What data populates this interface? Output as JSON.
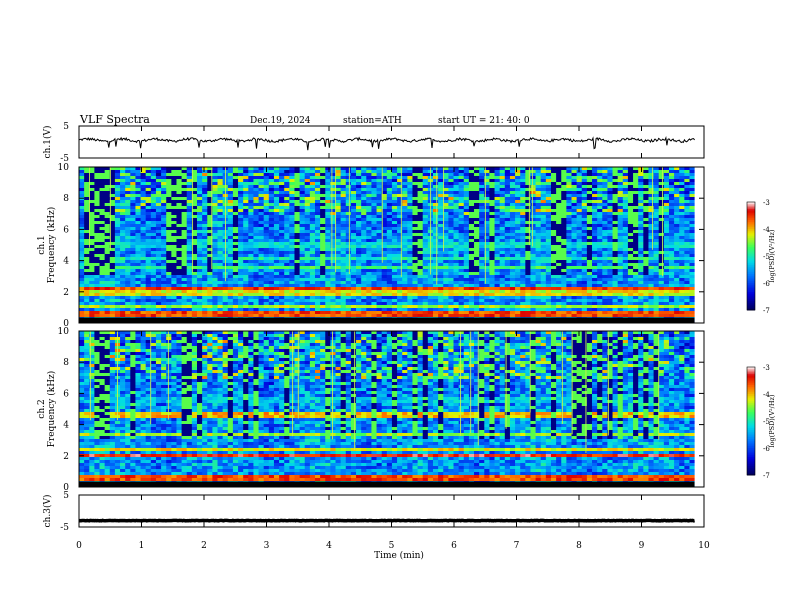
{
  "header": {
    "title": "VLF  Spectra",
    "date": "Dec.19, 2024",
    "station": "station=ATH",
    "start_ut": "start  UT  =   21: 40: 0"
  },
  "chart_data": [
    {
      "type": "line",
      "name": "ch1-waveform",
      "ylabel": "ch.1(V)",
      "xlim": [
        0,
        10
      ],
      "ylim": [
        -5,
        5
      ],
      "yticks": [
        "5",
        "-5"
      ],
      "baseline": 0.6,
      "x_end": 9.85
    },
    {
      "type": "heatmap",
      "name": "ch1-spectrogram",
      "ylabel": "ch.1\nFrequency  (kHz)",
      "ylabel_lines": [
        "ch.1",
        "Frequency  (kHz)"
      ],
      "xlim": [
        0,
        10
      ],
      "ylim": [
        0,
        10
      ],
      "yticks": [
        "0",
        "2",
        "4",
        "6",
        "8",
        "10"
      ],
      "x_end": 9.85,
      "bands": [
        {
          "freq": 0.6,
          "level": -3.6
        },
        {
          "freq": 1.0,
          "level": -4.4
        },
        {
          "freq": 1.9,
          "level": -4.2
        },
        {
          "freq": 2.2,
          "level": -3.6
        },
        {
          "freq": 3.5,
          "level": -4.8
        },
        {
          "freq": 4.1,
          "level": -5.0
        },
        {
          "freq": 5.0,
          "level": -5.2
        }
      ],
      "colorbar": {
        "label": "log(PSD)(V²/Hz)",
        "range": [
          -7,
          -3
        ],
        "ticks": [
          "-3",
          "-4",
          "-5",
          "-6",
          "-7"
        ]
      }
    },
    {
      "type": "heatmap",
      "name": "ch2-spectrogram",
      "ylabel": "ch.2\nFrequency  (kHz)",
      "ylabel_lines": [
        "ch.2",
        "Frequency  (kHz)"
      ],
      "xlim": [
        0,
        10
      ],
      "ylim": [
        0,
        10
      ],
      "yticks": [
        "0",
        "2",
        "4",
        "6",
        "8",
        "10"
      ],
      "x_end": 9.85,
      "bands": [
        {
          "freq": 0.6,
          "level": -3.6
        },
        {
          "freq": 2.0,
          "level": -3.4
        },
        {
          "freq": 2.4,
          "level": -4.2
        },
        {
          "freq": 3.3,
          "level": -4.4
        },
        {
          "freq": 4.6,
          "level": -4.0
        },
        {
          "freq": 5.6,
          "level": -5.4
        }
      ],
      "colorbar": {
        "label": "log(PSD)(V²/Hz)",
        "range": [
          -7,
          -3
        ],
        "ticks": [
          "-3",
          "-4",
          "-5",
          "-6",
          "-7"
        ]
      }
    },
    {
      "type": "line",
      "name": "ch3-waveform",
      "ylabel": "ch.3(V)",
      "xlim": [
        0,
        10
      ],
      "ylim": [
        -5,
        5
      ],
      "yticks": [
        "5",
        "-5"
      ],
      "baseline": -3.0,
      "x_end": 9.85
    }
  ],
  "x_axis": {
    "label": "Time  (min)",
    "ticks": [
      "0",
      "1",
      "2",
      "3",
      "4",
      "5",
      "6",
      "7",
      "8",
      "9",
      "10"
    ]
  },
  "colors": {
    "frame": "#000000",
    "waveform": "#000000",
    "background": "#ffffff"
  }
}
